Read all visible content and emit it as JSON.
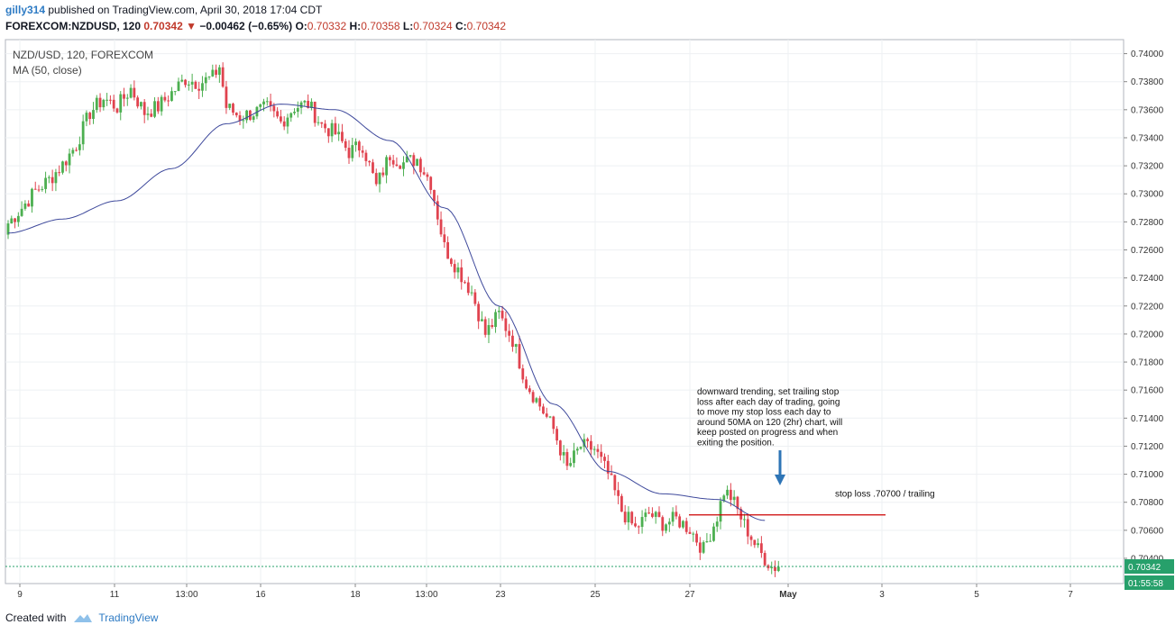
{
  "header": {
    "user": "gilly314",
    "published_text": "published on TradingView.com, April 30, 2018 17:04 CDT",
    "symbol_line": "FOREXCOM:NZDUSD, 120",
    "last": "0.70342",
    "change": "−0.00462 (−0.65%)",
    "o_label": "O:",
    "o": "0.70332",
    "h_label": "H:",
    "h": "0.70358",
    "l_label": "L:",
    "l": "0.70324",
    "c_label": "C:",
    "c": "0.70342"
  },
  "footer": {
    "created_with": "Created with",
    "brand": "TradingView"
  },
  "colors": {
    "up": "#4caf50",
    "down": "#e0434f",
    "ma": "#3f4a9c",
    "stop": "#cc0000",
    "arrow": "#2e75b6",
    "last": "#27a06b"
  },
  "chart_data": {
    "type": "candlestick",
    "title": "NZD/USD, 120, FOREXCOM",
    "indicator": "MA (50, close)",
    "ylim": [
      0.7022,
      0.741
    ],
    "y_ticks": [
      "0.74000",
      "0.73800",
      "0.73600",
      "0.73400",
      "0.73200",
      "0.73000",
      "0.72800",
      "0.72600",
      "0.72400",
      "0.72200",
      "0.72000",
      "0.71800",
      "0.71600",
      "0.71400",
      "0.71200",
      "0.71000",
      "0.70800",
      "0.70600",
      "0.70400"
    ],
    "x_ticks": [
      "9",
      "11",
      "13:00",
      "16",
      "18",
      "13:00",
      "23",
      "25",
      "27",
      "May",
      "3",
      "5",
      "7"
    ],
    "last_price_label": "0.70342",
    "countdown": "01:55:58",
    "close_path": [
      [
        0,
        0.7279
      ],
      [
        4,
        0.729
      ],
      [
        8,
        0.7302
      ],
      [
        12,
        0.731
      ],
      [
        16,
        0.7321
      ],
      [
        20,
        0.7335
      ],
      [
        24,
        0.7358
      ],
      [
        28,
        0.7368
      ],
      [
        32,
        0.7362
      ],
      [
        36,
        0.7375
      ],
      [
        40,
        0.7358
      ],
      [
        44,
        0.7362
      ],
      [
        48,
        0.7372
      ],
      [
        52,
        0.7382
      ],
      [
        56,
        0.7379
      ],
      [
        60,
        0.7383
      ],
      [
        62,
        0.7391
      ],
      [
        64,
        0.7362
      ],
      [
        68,
        0.7355
      ],
      [
        72,
        0.7358
      ],
      [
        76,
        0.7361
      ],
      [
        80,
        0.7351
      ],
      [
        84,
        0.7362
      ],
      [
        88,
        0.7364
      ],
      [
        92,
        0.7349
      ],
      [
        96,
        0.7343
      ],
      [
        100,
        0.733
      ],
      [
        104,
        0.7335
      ],
      [
        108,
        0.7305
      ],
      [
        112,
        0.7328
      ],
      [
        116,
        0.7322
      ],
      [
        120,
        0.7325
      ],
      [
        124,
        0.7308
      ],
      [
        128,
        0.7262
      ],
      [
        132,
        0.7246
      ],
      [
        136,
        0.723
      ],
      [
        140,
        0.72
      ],
      [
        144,
        0.7214
      ],
      [
        148,
        0.7196
      ],
      [
        152,
        0.7165
      ],
      [
        156,
        0.7149
      ],
      [
        160,
        0.7132
      ],
      [
        164,
        0.7104
      ],
      [
        168,
        0.712
      ],
      [
        172,
        0.7118
      ],
      [
        176,
        0.71
      ],
      [
        180,
        0.7074
      ],
      [
        184,
        0.7061
      ],
      [
        188,
        0.7072
      ],
      [
        192,
        0.7065
      ],
      [
        196,
        0.7068
      ],
      [
        200,
        0.7061
      ],
      [
        204,
        0.7046
      ],
      [
        208,
        0.707
      ],
      [
        210,
        0.7088
      ],
      [
        212,
        0.7084
      ],
      [
        216,
        0.7064
      ],
      [
        220,
        0.7046
      ],
      [
        224,
        0.7034
      ],
      [
        226,
        0.7034
      ]
    ],
    "ma_path": [
      [
        0,
        0.7272
      ],
      [
        16,
        0.7282
      ],
      [
        32,
        0.7295
      ],
      [
        48,
        0.7318
      ],
      [
        64,
        0.735
      ],
      [
        80,
        0.7364
      ],
      [
        96,
        0.736
      ],
      [
        112,
        0.7338
      ],
      [
        128,
        0.729
      ],
      [
        144,
        0.722
      ],
      [
        160,
        0.715
      ],
      [
        176,
        0.7102
      ],
      [
        192,
        0.7086
      ],
      [
        208,
        0.7082
      ],
      [
        222,
        0.7067
      ]
    ],
    "stop_loss": {
      "y": 0.7071,
      "label": "stop loss .70700 / trailing"
    },
    "annotation": [
      "downward trending, set trailing stop",
      "loss after each day of trading, going",
      "to move my stop loss each day to",
      "around 50MA on 120 (2hr) chart, will",
      "keep posted on progress and when",
      "exiting the position."
    ]
  }
}
